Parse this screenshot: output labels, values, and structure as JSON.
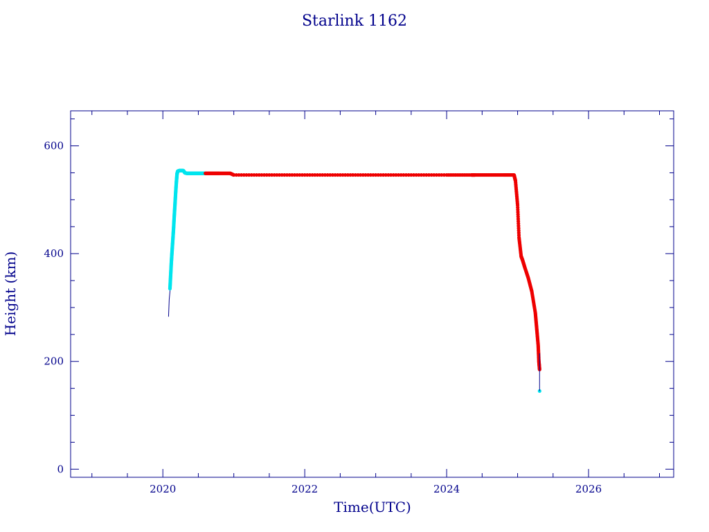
{
  "chart_data": {
    "type": "scatter",
    "title": "Starlink 1162",
    "xlabel": "Time(UTC)",
    "ylabel": "Height (km)",
    "xlim": [
      2018.7,
      2027.2
    ],
    "ylim": [
      -15,
      665
    ],
    "x_ticks": [
      2020,
      2022,
      2024,
      2026
    ],
    "x_tick_labels": [
      "2020",
      "2022",
      "2024",
      "2026"
    ],
    "y_ticks": [
      0,
      200,
      400,
      600
    ],
    "y_tick_labels": [
      "0",
      "200",
      "400",
      "600"
    ],
    "grid": false,
    "colors": {
      "axes": "#00008b",
      "line": "#00008b",
      "cyan": "#00e5ee",
      "red": "#ee0000"
    },
    "series": [
      {
        "color": "#00008b",
        "marker": "line",
        "x": [
          2020.08,
          2020.09,
          2020.1,
          2020.11,
          2020.13,
          2020.16,
          2020.19,
          2020.21
        ],
        "y": [
          283,
          315,
          330,
          370,
          420,
          480,
          530,
          553
        ]
      },
      {
        "color": "#00e5ee",
        "marker": "point",
        "x": [
          2020.1,
          2020.11,
          2020.12,
          2020.13,
          2020.14,
          2020.15,
          2020.16,
          2020.17,
          2020.18,
          2020.19,
          2020.2,
          2020.21,
          2020.23,
          2020.26,
          2020.29,
          2020.31,
          2020.34,
          2020.38,
          2020.42,
          2020.46,
          2020.5,
          2020.55,
          2020.6
        ],
        "y": [
          335,
          360,
          385,
          405,
          425,
          445,
          468,
          490,
          512,
          532,
          548,
          553,
          554,
          554,
          554,
          550,
          549,
          549,
          549,
          549,
          549,
          549,
          549
        ]
      },
      {
        "color": "#ee0000",
        "marker": "point",
        "x": [
          2020.6,
          2020.7,
          2020.8,
          2020.95,
          2021.0,
          2021.5,
          2022.0,
          2022.5,
          2023.0,
          2023.5,
          2024.0,
          2024.35,
          2024.4,
          2024.6,
          2024.8,
          2024.95,
          2024.97,
          2025.0,
          2025.02,
          2025.05,
          2025.07,
          2025.1,
          2025.15,
          2025.2,
          2025.25,
          2025.27,
          2025.29,
          2025.3,
          2025.31
        ],
        "y": [
          549,
          549,
          549,
          549,
          546,
          546,
          546,
          546,
          546,
          546,
          546,
          546,
          546,
          546,
          546,
          546,
          535,
          490,
          430,
          395,
          388,
          375,
          355,
          330,
          290,
          260,
          230,
          200,
          185
        ]
      },
      {
        "color": "#00e5ee",
        "marker": "point",
        "x": [
          2025.31
        ],
        "y": [
          145
        ]
      },
      {
        "color": "#00008b",
        "marker": "line",
        "x": [
          2025.31,
          2025.31
        ],
        "y": [
          145,
          215
        ]
      }
    ]
  }
}
